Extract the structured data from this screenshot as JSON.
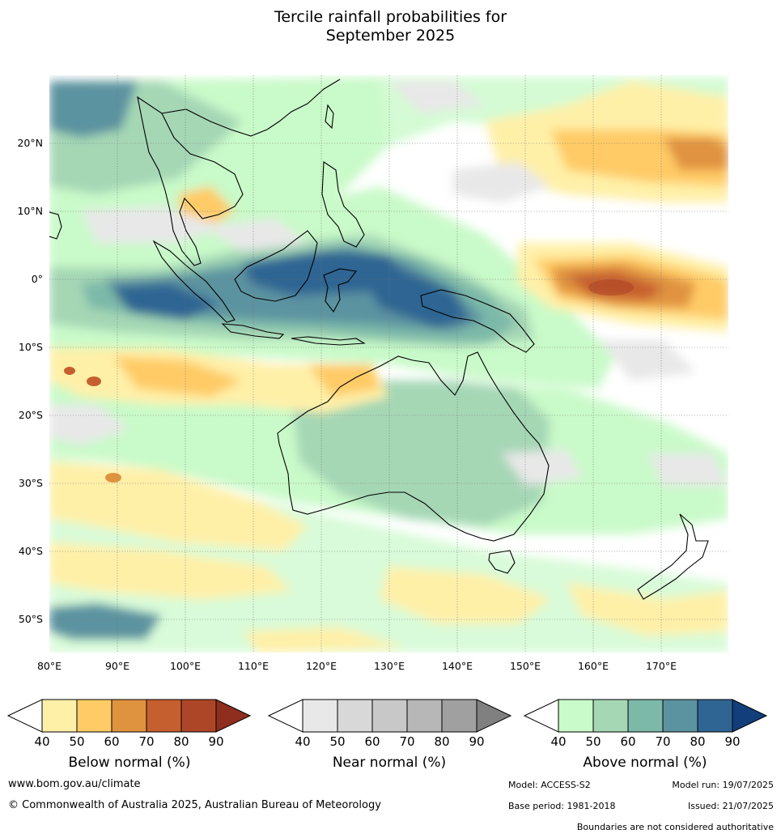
{
  "title_line1": "Tercile rainfall probabilities for",
  "title_line2": "September 2025",
  "map": {
    "lon_ticks": [
      "80°E",
      "90°E",
      "100°E",
      "110°E",
      "120°E",
      "130°E",
      "140°E",
      "150°E",
      "160°E",
      "170°E"
    ],
    "lat_ticks": [
      "20°N",
      "10°N",
      "0°",
      "10°S",
      "20°S",
      "30°S",
      "40°S",
      "50°S"
    ]
  },
  "colorbars": {
    "below": {
      "title": "Below normal (%)",
      "ticks": [
        "40",
        "50",
        "60",
        "70",
        "80",
        "90"
      ],
      "colors": [
        "#ffffff",
        "#fff0a8",
        "#ffcb66",
        "#e0933f",
        "#c65f2f",
        "#ad4627",
        "#8f2e1e"
      ]
    },
    "near": {
      "title": "Near normal (%)",
      "ticks": [
        "40",
        "50",
        "60",
        "70",
        "80",
        "90"
      ],
      "colors": [
        "#ffffff",
        "#e8e8e8",
        "#d8d8d8",
        "#c8c8c8",
        "#b7b7b7",
        "#a0a0a0",
        "#808080"
      ]
    },
    "above": {
      "title": "Above normal (%)",
      "ticks": [
        "40",
        "50",
        "60",
        "70",
        "80",
        "90"
      ],
      "colors": [
        "#ffffff",
        "#c9fac9",
        "#a5d7b5",
        "#7db9a9",
        "#5b93a0",
        "#2f6593",
        "#123f7c"
      ]
    }
  },
  "footer": {
    "website": "www.bom.gov.au/climate",
    "copyright": "© Commonwealth of Australia 2025, Australian Bureau of Meteorology",
    "model": "Model: ACCESS-S2",
    "model_run": "Model run: 19/07/2025",
    "base_period": "Base period: 1981-2018",
    "issued": "Issued: 21/07/2025",
    "disclaimer": "Boundaries are not considered authoritative"
  }
}
